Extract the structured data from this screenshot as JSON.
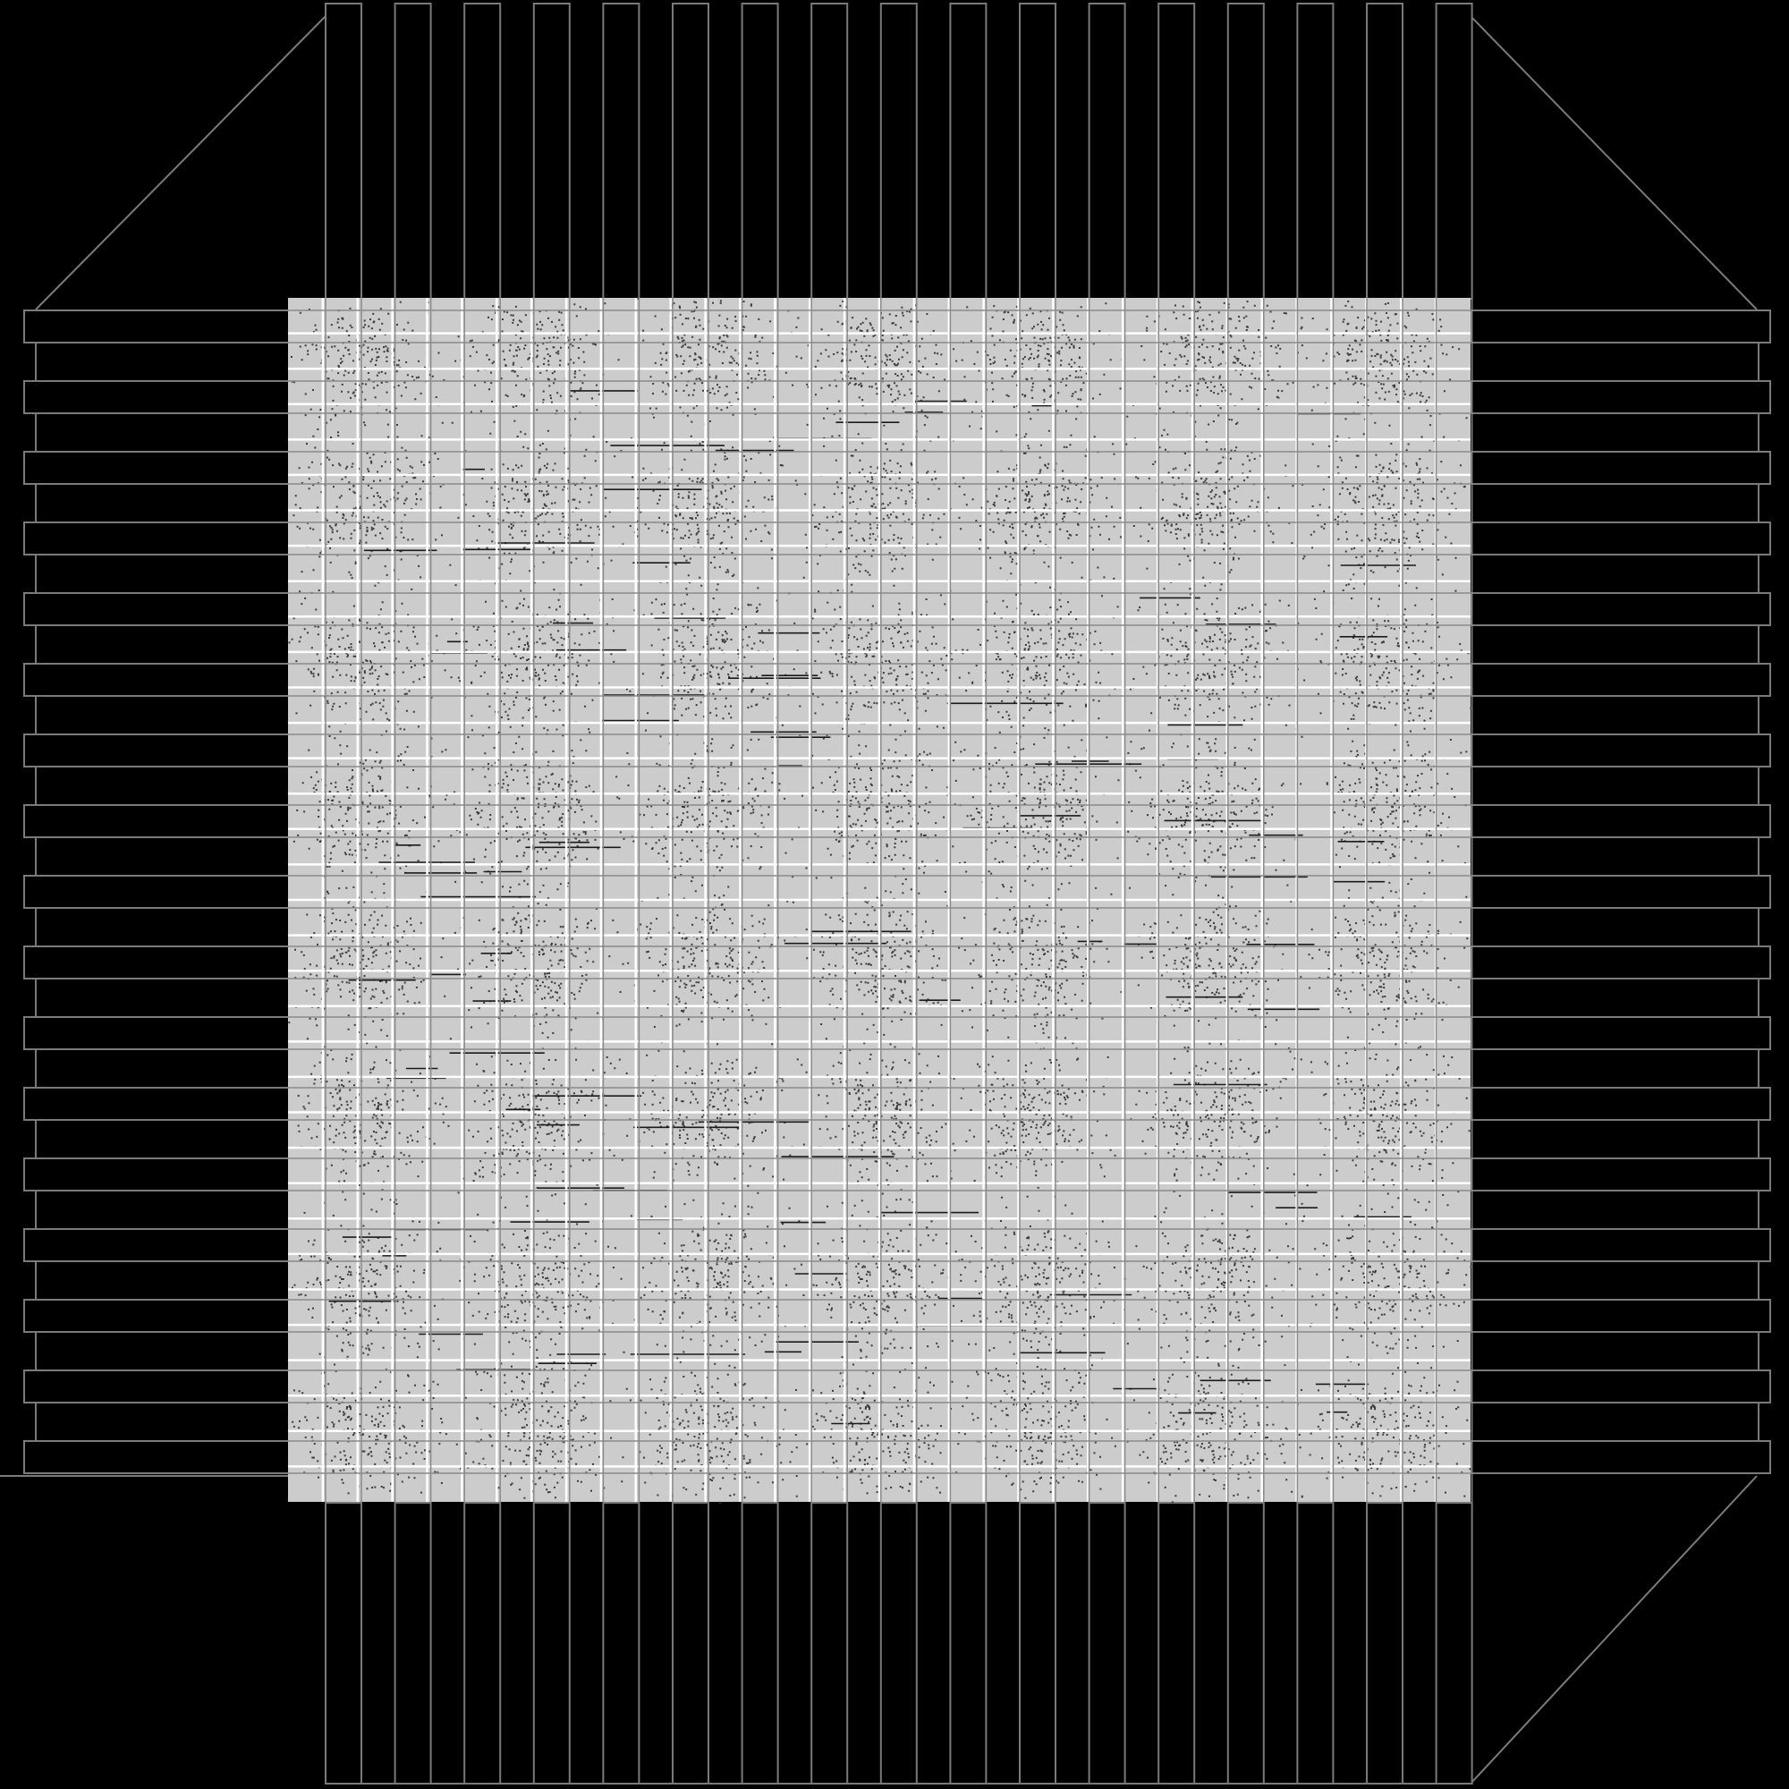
{
  "diagram": {
    "kind": "chip layout",
    "top_pins": 17,
    "left_pins": 17,
    "right_pins": 17,
    "bottom_pins": 17,
    "core_grid_columns": 34,
    "core_grid_rows": 34,
    "colors": {
      "background": "#000000",
      "outline": "#7a7a7a",
      "core_fill": "#cccccc",
      "grid": "#ffffff",
      "cells": "#3a3a3a"
    }
  }
}
